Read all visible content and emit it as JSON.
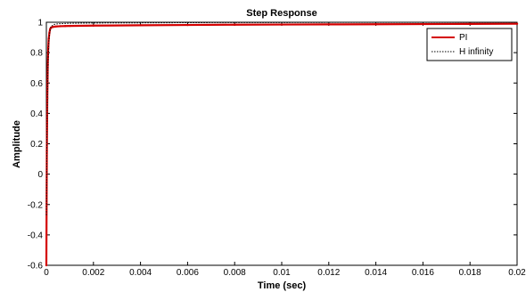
{
  "chart_data": {
    "type": "line",
    "title": "Step Response",
    "xlabel": "Time (sec)",
    "ylabel": "Amplitude",
    "xlim": [
      0,
      0.02
    ],
    "ylim": [
      -0.6,
      1
    ],
    "xticks": [
      0,
      0.002,
      0.004,
      0.006,
      0.008,
      0.01,
      0.012,
      0.014,
      0.016,
      0.018,
      0.02
    ],
    "xtick_labels": [
      "0",
      "0.002",
      "0.004",
      "0.006",
      "0.008",
      "0.01",
      "0.012",
      "0.014",
      "0.016",
      "0.018",
      "0.02"
    ],
    "yticks": [
      -0.6,
      -0.4,
      -0.2,
      0,
      0.2,
      0.4,
      0.6,
      0.8,
      1
    ],
    "ytick_labels": [
      "-0.6",
      "-0.4",
      "-0.2",
      "0",
      "0.2",
      "0.4",
      "0.6",
      "0.8",
      "1"
    ],
    "grid": false,
    "legend_position": "top-right",
    "series": [
      {
        "name": "PI",
        "color": "#d40000",
        "style": "solid",
        "x": [
          0,
          2e-05,
          4e-05,
          6e-05,
          8e-05,
          0.0001,
          0.00013,
          0.00016,
          0.0002,
          0.00025,
          0.0003,
          0.0004,
          0.0006,
          0.0008,
          0.001,
          0.002,
          0.004,
          0.006,
          0.008,
          0.01,
          0.012,
          0.014,
          0.016,
          0.018,
          0.02
        ],
        "y": [
          -0.6,
          0.15,
          0.5,
          0.72,
          0.83,
          0.89,
          0.93,
          0.955,
          0.965,
          0.968,
          0.97,
          0.972,
          0.974,
          0.975,
          0.976,
          0.978,
          0.98,
          0.982,
          0.984,
          0.985,
          0.986,
          0.987,
          0.988,
          0.989,
          0.99
        ]
      },
      {
        "name": "H infinity",
        "color": "#000000",
        "style": "dotted",
        "x": [
          0,
          2e-05,
          5e-05,
          8e-05,
          0.00011,
          0.00015,
          0.0002,
          0.0003,
          0.0005,
          0.001,
          0.002,
          0.004,
          0.006,
          0.008,
          0.01,
          0.012,
          0.014,
          0.016,
          0.018,
          0.02
        ],
        "y": [
          -0.27,
          0.2,
          0.55,
          0.77,
          0.88,
          0.94,
          0.97,
          0.985,
          0.99,
          0.993,
          0.995,
          0.996,
          0.997,
          0.998,
          0.998,
          0.999,
          0.999,
          0.999,
          0.999,
          0.999
        ]
      }
    ],
    "reference_line": {
      "y": 1,
      "color": "#000000",
      "style": "dotted"
    }
  }
}
